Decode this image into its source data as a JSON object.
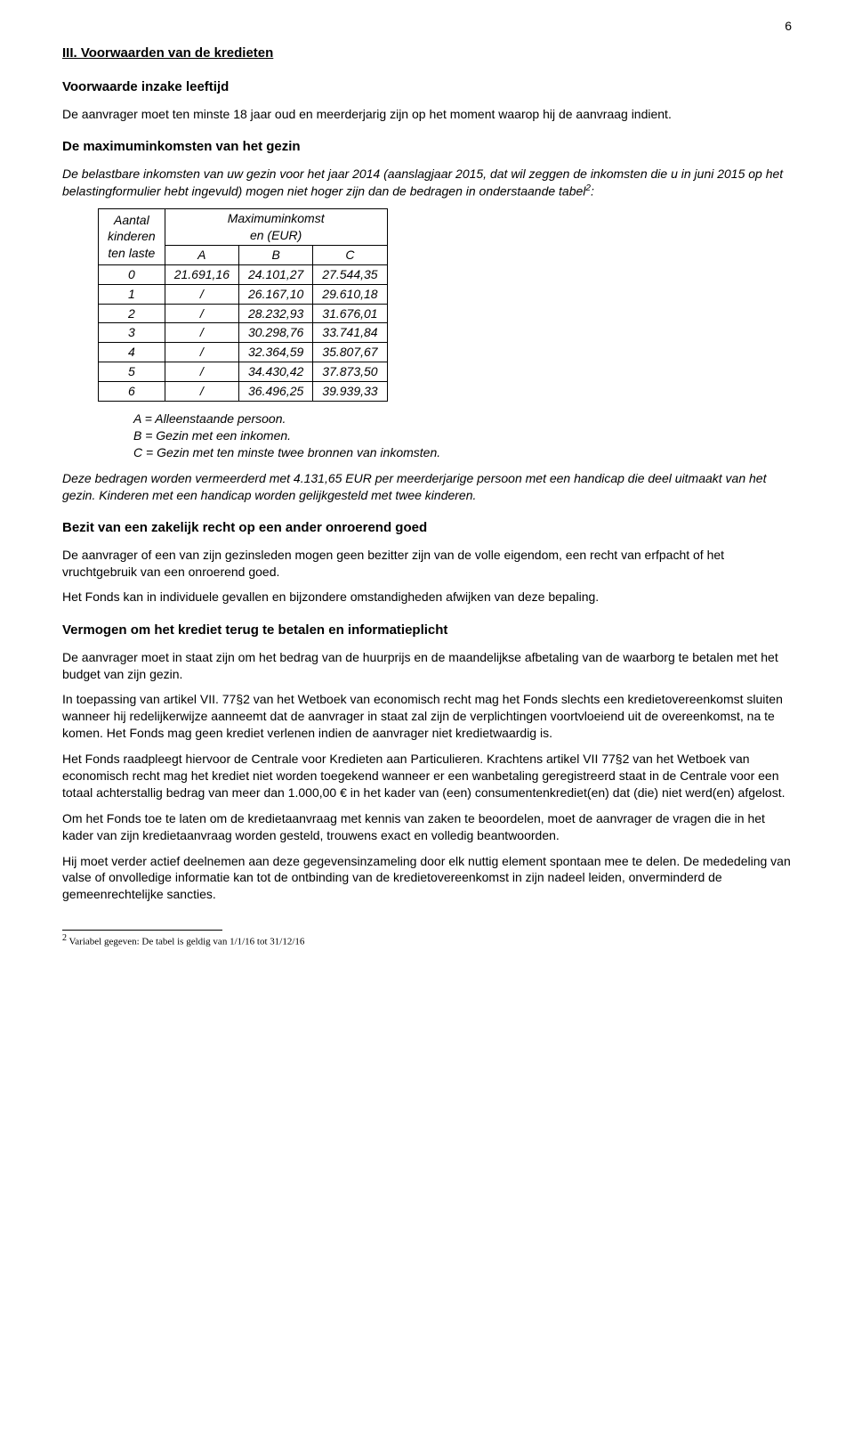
{
  "pageNumber": "6",
  "headingMain": "III. Voorwaarden van de kredieten",
  "headingAge": "Voorwaarde inzake leeftijd",
  "paraAge": "De aanvrager moet ten minste 18 jaar oud en meerderjarig zijn op het moment waarop hij de aanvraag indient.",
  "headingIncome": "De maximuminkomsten van het gezin",
  "paraIncomeIntroA": "De belastbare inkomsten van uw gezin voor het jaar 2014 (aanslagjaar 2015, dat wil zeggen de inkomsten die u in juni 2015 op het belastingformulier hebt ingevuld) mogen niet hoger zijn dan de bedragen in onderstaande tabel",
  "paraIncomeIntroSup": "2",
  "paraIncomeIntroB": ":",
  "tableHeaderLeftA": "Aantal",
  "tableHeaderLeftB": "kinderen",
  "tableHeaderLeftC": "ten laste",
  "tableHeaderTopA": "Maximuminkomst",
  "tableHeaderTopB": "en (EUR)",
  "colA": "A",
  "colB": "B",
  "colC": "C",
  "row0k": "0",
  "row0a": "21.691,16",
  "row0b": "24.101,27",
  "row0c": "27.544,35",
  "row1k": "1",
  "row1a": "/",
  "row1b": "26.167,10",
  "row1c": "29.610,18",
  "row2k": "2",
  "row2a": "/",
  "row2b": "28.232,93",
  "row2c": "31.676,01",
  "row3k": "3",
  "row3a": "/",
  "row3b": "30.298,76",
  "row3c": "33.741,84",
  "row4k": "4",
  "row4a": "/",
  "row4b": "32.364,59",
  "row4c": "35.807,67",
  "row5k": "5",
  "row5a": "/",
  "row5b": "34.430,42",
  "row5c": "37.873,50",
  "row6k": "6",
  "row6a": "/",
  "row6b": "36.496,25",
  "row6c": "39.939,33",
  "legendA": "A = Alleenstaande persoon.",
  "legendB": "B = Gezin met een inkomen.",
  "legendC": "C = Gezin met ten minste twee bronnen van inkomsten.",
  "paraHandicap": "Deze bedragen worden vermeerderd met 4.131,65 EUR per meerderjarige persoon met een handicap die deel uitmaakt van het gezin. Kinderen met een handicap worden gelijkgesteld met twee kinderen.",
  "headingZakelijk": "Bezit van een zakelijk recht op een ander onroerend goed",
  "paraZakelijk1": "De aanvrager of een van zijn gezinsleden mogen geen bezitter zijn van de volle eigendom, een recht van erfpacht of het vruchtgebruik van een onroerend goed.",
  "paraZakelijk2": "Het Fonds kan in individuele gevallen en bijzondere omstandigheden afwijken van deze bepaling.",
  "headingVermogen": "Vermogen om het krediet terug te betalen en informatieplicht",
  "paraVermogen1": "De aanvrager moet in staat zijn om het bedrag van de huurprijs en de maandelijkse afbetaling van de waarborg te betalen met het budget van zijn gezin.",
  "paraVermogen2": "In toepassing van artikel VII. 77§2 van het Wetboek van economisch recht mag het Fonds slechts een kredietovereenkomst sluiten wanneer hij redelijkerwijze aanneemt dat de aanvrager in staat zal zijn de verplichtingen voortvloeiend uit de overeenkomst, na te komen. Het Fonds mag geen krediet verlenen indien de aanvrager niet kredietwaardig is.",
  "paraVermogen3": "Het Fonds raadpleegt hiervoor de Centrale voor Kredieten aan Particulieren. Krachtens artikel VII 77§2 van het Wetboek van economisch recht mag het krediet niet worden toegekend wanneer er een wanbetaling geregistreerd staat in de Centrale voor een totaal achterstallig bedrag van meer dan  1.000,00 € in het kader van (een) consumentenkrediet(en) dat (die) niet werd(en) afgelost.",
  "paraVermogen4": "Om het Fonds toe te laten om de kredietaanvraag met kennis van zaken te beoordelen, moet de aanvrager de vragen die in het kader van zijn kredietaanvraag worden gesteld, trouwens exact en volledig beantwoorden.",
  "paraVermogen5": "Hij moet verder actief deelnemen aan deze gegevensinzameling door elk nuttig element spontaan mee te delen. De mededeling van valse of onvolledige informatie kan tot de ontbinding van de kredietovereenkomst in zijn nadeel leiden, onverminderd de gemeenrechtelijke sancties.",
  "footnoteSup": "2",
  "footnoteText": " Variabel gegeven: De tabel is geldig van 1/1/16 tot 31/12/16"
}
